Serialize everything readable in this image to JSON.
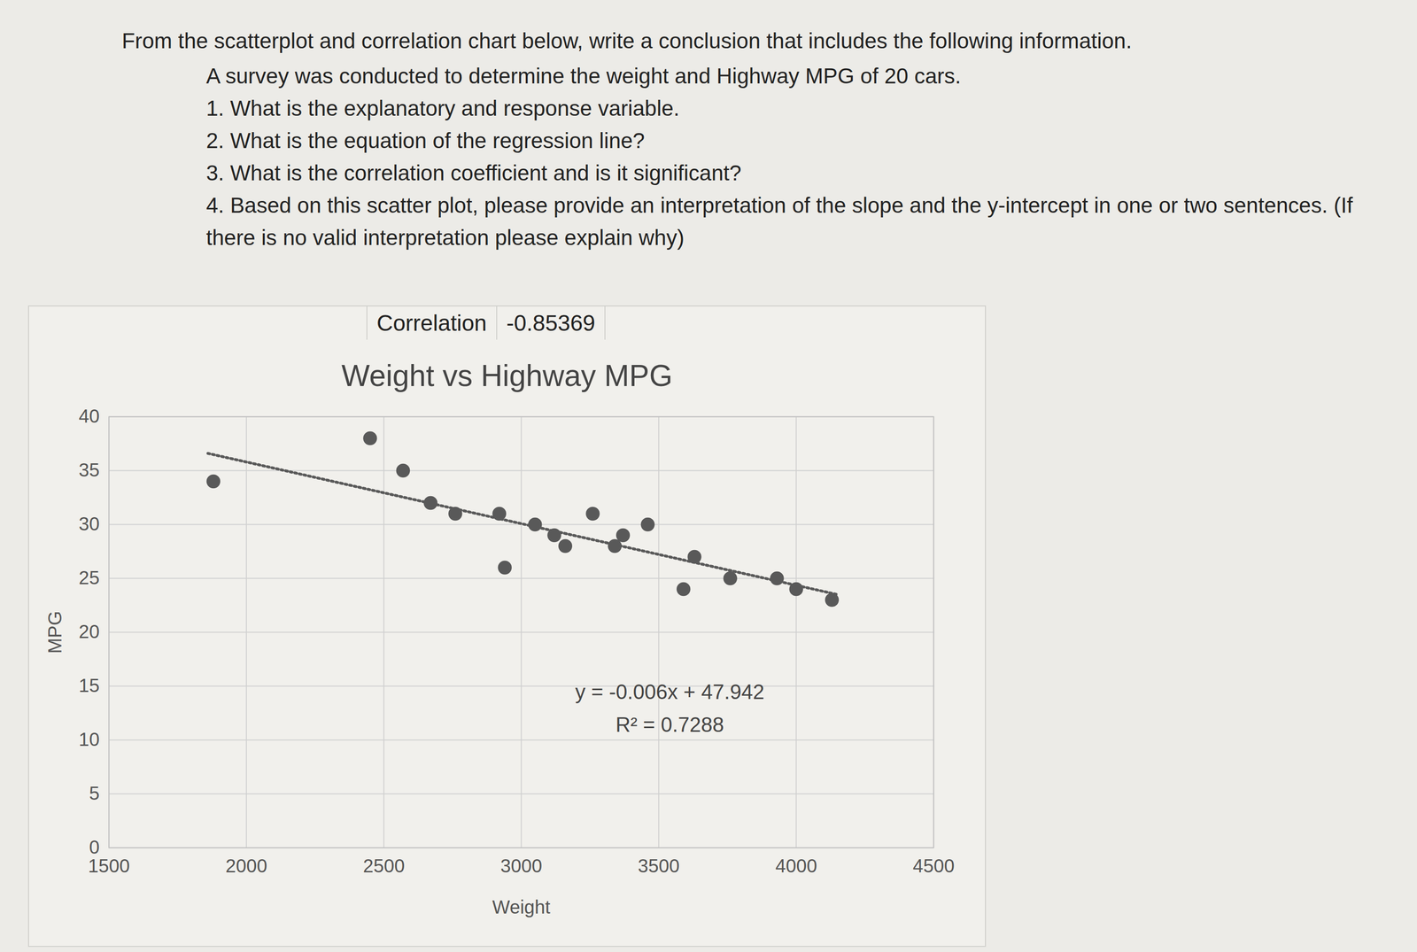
{
  "document": {
    "heading": "From the scatterplot and correlation chart below, write a conclusion that includes the following information.",
    "lines": [
      "A survey was conducted to determine the weight and Highway MPG of 20 cars.",
      "1. What is the explanatory and response variable.",
      "2. What is the equation of the regression line?",
      "3. What is the correlation coefficient and is it significant?",
      "4. Based on this scatter plot, please provide an interpretation of the slope and the y-intercept in one or two sentences. (If there is no valid interpretation please explain why)"
    ]
  },
  "correlation": {
    "label": "Correlation",
    "value": -0.85369
  },
  "chart_data": {
    "type": "scatter",
    "title": "Weight vs Highway MPG",
    "x_label": "Weight",
    "y_label": "MPG",
    "x": [
      1880,
      2450,
      2570,
      2670,
      2760,
      2920,
      2940,
      3050,
      3120,
      3160,
      3260,
      3370,
      3340,
      3460,
      3630,
      3590,
      3760,
      3930,
      4000,
      4130
    ],
    "values": [
      34,
      38,
      35,
      32,
      31,
      31,
      26,
      30,
      29,
      28,
      31,
      29,
      28,
      30,
      27,
      24,
      25,
      25,
      24,
      23
    ],
    "color": "#595959",
    "marker": "circle",
    "trendline": {
      "x": [
        1860,
        4150
      ],
      "values": [
        36.6,
        23.5
      ],
      "line_style": "dotted",
      "color": "#595959"
    },
    "annotations": [
      "y = -0.006x + 47.942",
      "R² = 0.7288"
    ],
    "xlim": [
      1500,
      4500
    ],
    "xticks": [
      1500,
      2000,
      2500,
      3000,
      3500,
      4000,
      4500
    ],
    "ylim": [
      0,
      40
    ],
    "yticks": [
      0,
      5,
      10,
      15,
      20,
      25,
      30,
      35,
      40
    ],
    "grid": true
  }
}
